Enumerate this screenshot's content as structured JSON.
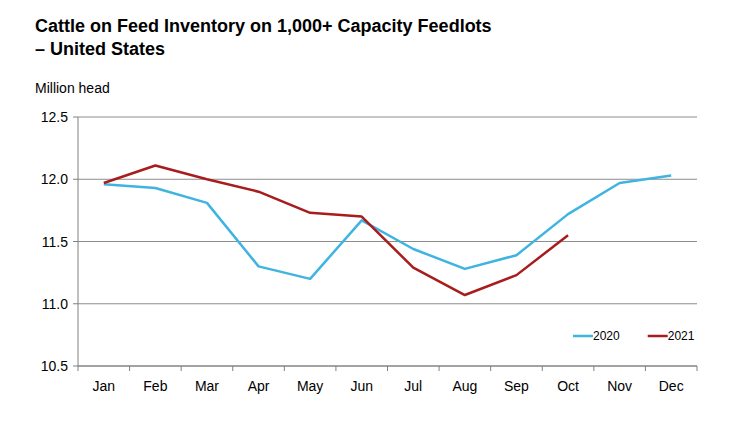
{
  "chart_data": {
    "type": "line",
    "title": "Cattle on Feed Inventory on 1,000+ Capacity Feedlots – United States",
    "y_label": "Million head",
    "categories": [
      "Jan",
      "Feb",
      "Mar",
      "Apr",
      "May",
      "Jun",
      "Jul",
      "Aug",
      "Sep",
      "Oct",
      "Nov",
      "Dec"
    ],
    "series": [
      {
        "name": "2020",
        "color": "#3fb4e0",
        "values": [
          11.96,
          11.93,
          11.81,
          11.3,
          11.2,
          11.67,
          11.44,
          11.28,
          11.39,
          11.72,
          11.97,
          12.03
        ]
      },
      {
        "name": "2021",
        "color": "#a81c1c",
        "values": [
          11.97,
          12.11,
          12.0,
          11.9,
          11.73,
          11.7,
          11.29,
          11.07,
          11.23,
          11.55,
          null,
          null
        ]
      }
    ],
    "ylim": [
      10.5,
      12.5
    ],
    "yticks": [
      10.5,
      {
        "value": 11,
        "label": "11.0"
      },
      11.5,
      {
        "value": 12,
        "label": "12.0"
      },
      12.5
    ],
    "grid": true,
    "legend": "lower right"
  }
}
